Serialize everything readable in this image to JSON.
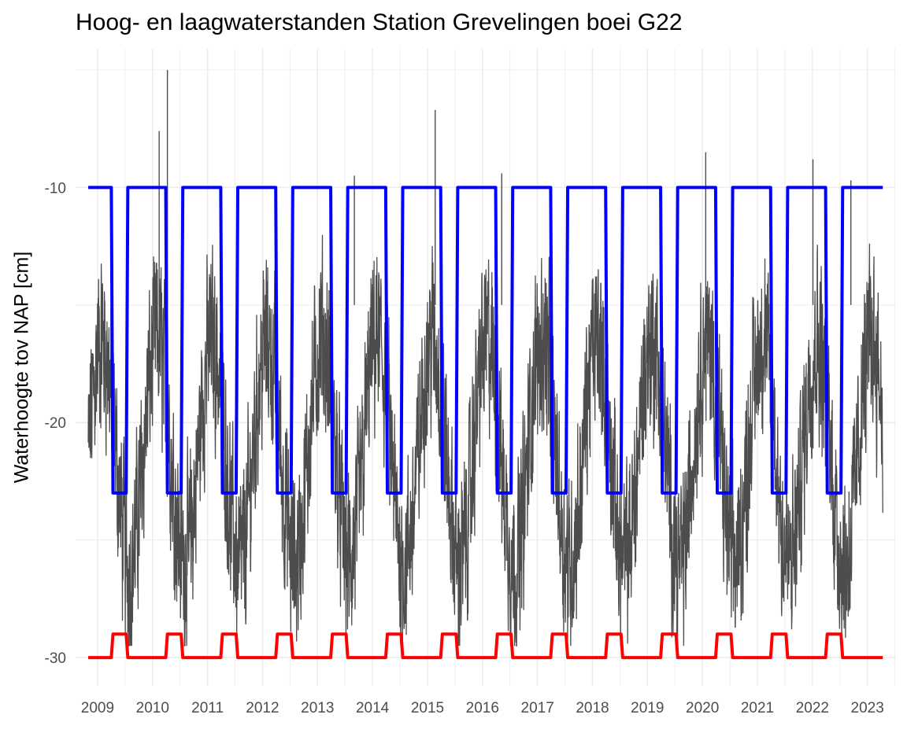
{
  "chart_data": {
    "type": "line",
    "title": "Hoog- en laagwaterstanden Station Grevelingen boei G22",
    "xlabel": "",
    "ylabel": "Waterhoogte tov NAP [cm]",
    "x_ticks": [
      "2009",
      "2010",
      "2011",
      "2012",
      "2013",
      "2014",
      "2015",
      "2016",
      "2017",
      "2018",
      "2019",
      "2020",
      "2021",
      "2022",
      "2023"
    ],
    "y_ticks": [
      -10,
      -20,
      -30
    ],
    "xlim": [
      2008.6,
      2023.52
    ],
    "ylim": [
      -31.2,
      -4.1
    ],
    "grid": true,
    "legend": "none",
    "colors": {
      "measured": "#4d4d4d",
      "upper_target": "#0000ff",
      "lower_target": "#ff0000",
      "grid": "#ebebeb"
    },
    "series": [
      {
        "color": "#4d4d4d",
        "style": "thin-line",
        "x_start": 2008.83,
        "x_end": 2023.28,
        "yearly_pattern": {
          "high_season_level": -16.5,
          "low_season_level": -26.0,
          "max_value": -5.0,
          "min_value": -29.5
        },
        "peaks": [
          {
            "x": 2010.12,
            "y": -7.6
          },
          {
            "x": 2010.27,
            "y": -5.0
          },
          {
            "x": 2015.14,
            "y": -6.7
          },
          {
            "x": 2020.06,
            "y": -8.5
          },
          {
            "x": 2022.01,
            "y": -8.8
          },
          {
            "x": 2013.67,
            "y": -9.5
          },
          {
            "x": 2016.35,
            "y": -9.4
          },
          {
            "x": 2022.7,
            "y": -9.7
          }
        ]
      },
      {
        "color": "#0000ff",
        "style": "step",
        "levels": [
          -10,
          -23
        ],
        "low_intervals": [
          [
            2009.25,
            2009.55
          ],
          [
            2010.24,
            2010.55
          ],
          [
            2011.24,
            2011.55
          ],
          [
            2012.24,
            2012.55
          ],
          [
            2013.24,
            2013.55
          ],
          [
            2014.24,
            2014.55
          ],
          [
            2015.24,
            2015.55
          ],
          [
            2016.24,
            2016.55
          ],
          [
            2017.24,
            2017.55
          ],
          [
            2018.24,
            2018.55
          ],
          [
            2019.24,
            2019.55
          ],
          [
            2020.24,
            2020.55
          ],
          [
            2021.24,
            2021.55
          ],
          [
            2022.24,
            2022.55
          ]
        ],
        "x_range": [
          2008.83,
          2023.28
        ]
      },
      {
        "color": "#ff0000",
        "style": "step",
        "levels": [
          -30,
          -29
        ],
        "high_intervals": [
          [
            2009.25,
            2009.55
          ],
          [
            2010.24,
            2010.55
          ],
          [
            2011.24,
            2011.55
          ],
          [
            2012.24,
            2012.55
          ],
          [
            2013.24,
            2013.55
          ],
          [
            2014.24,
            2014.55
          ],
          [
            2015.24,
            2015.55
          ],
          [
            2016.24,
            2016.55
          ],
          [
            2017.24,
            2017.55
          ],
          [
            2018.24,
            2018.55
          ],
          [
            2019.24,
            2019.55
          ],
          [
            2020.24,
            2020.55
          ],
          [
            2021.24,
            2021.55
          ],
          [
            2022.24,
            2022.55
          ]
        ],
        "x_range": [
          2008.83,
          2023.28
        ]
      }
    ]
  }
}
